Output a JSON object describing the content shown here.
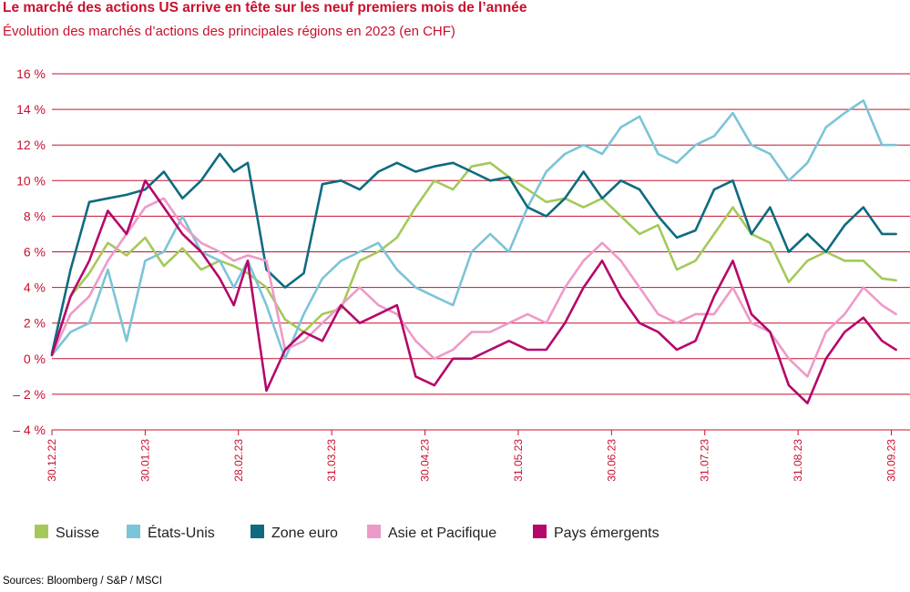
{
  "header": {
    "title": "Le marché des actions US arrive en tête sur les neuf premiers mois de l’année",
    "subtitle": "Évolution des marchés d’actions des principales régions en 2023 (en CHF)"
  },
  "footer": {
    "source": "Sources: Bloomberg / S&P / MSCI"
  },
  "chart_data": {
    "type": "line",
    "title": "Le marché des actions US arrive en tête sur les neuf premiers mois de l’année",
    "subtitle": "Évolution des marchés d’actions des principales régions en 2023 (en CHF)",
    "ylim": [
      -4,
      16
    ],
    "yticks": [
      -4,
      -2,
      0,
      2,
      4,
      6,
      8,
      10,
      12,
      14,
      16
    ],
    "ytick_labels": [
      "– 4 %",
      "– 2 %",
      "0 %",
      "2 %",
      "4 %",
      "6 %",
      "8 %",
      "10 %",
      "12 %",
      "14 %",
      "16 %"
    ],
    "xtick_labels": [
      "30.12.22",
      "30.01.23",
      "28.02.23",
      "31.03.23",
      "30.04.23",
      "31.05.23",
      "30.06.23",
      "31.07.23",
      "31.08.23",
      "30.09.23"
    ],
    "grid": "horizontal",
    "legend_position": "bottom",
    "colors": {
      "Suisse": "#a4c95a",
      "États-Unis": "#7cc4d8",
      "Zone euro": "#0f6b80",
      "Asie et Pacifique": "#ee9ac8",
      "Pays émergents": "#b5076b",
      "accent": "#c8102e",
      "gridline": "#c8102e"
    },
    "x_unit": "months since 30.12.22",
    "series": [
      {
        "name": "Suisse",
        "x": [
          0,
          0.2,
          0.4,
          0.6,
          0.8,
          1.0,
          1.2,
          1.4,
          1.6,
          1.8,
          1.95,
          2.1,
          2.3,
          2.5,
          2.7,
          2.9,
          3.1,
          3.3,
          3.5,
          3.7,
          3.9,
          4.1,
          4.3,
          4.5,
          4.7,
          4.9,
          5.1,
          5.3,
          5.5,
          5.7,
          5.9,
          6.1,
          6.3,
          6.5,
          6.7,
          6.9,
          7.1,
          7.3,
          7.5,
          7.7,
          7.9,
          8.1,
          8.3,
          8.5,
          8.7,
          8.9,
          9.05
        ],
        "y": [
          0.2,
          3.5,
          4.8,
          6.5,
          5.8,
          6.8,
          5.2,
          6.2,
          5.0,
          5.5,
          5.2,
          4.8,
          4.0,
          2.2,
          1.5,
          2.5,
          2.8,
          5.5,
          6.0,
          6.8,
          8.5,
          10.0,
          9.5,
          10.8,
          11.0,
          10.2,
          9.5,
          8.8,
          9.0,
          8.5,
          9.0,
          8.0,
          7.0,
          7.5,
          5.0,
          5.5,
          7.0,
          8.5,
          7.0,
          6.5,
          4.3,
          5.5,
          6.0,
          5.5,
          5.5,
          4.5,
          4.4
        ]
      },
      {
        "name": "États-Unis",
        "x": [
          0,
          0.2,
          0.4,
          0.6,
          0.8,
          1.0,
          1.2,
          1.4,
          1.6,
          1.8,
          1.95,
          2.1,
          2.3,
          2.5,
          2.7,
          2.9,
          3.1,
          3.3,
          3.5,
          3.7,
          3.9,
          4.1,
          4.3,
          4.5,
          4.7,
          4.9,
          5.1,
          5.3,
          5.5,
          5.7,
          5.9,
          6.1,
          6.3,
          6.5,
          6.7,
          6.9,
          7.1,
          7.3,
          7.5,
          7.7,
          7.9,
          8.1,
          8.3,
          8.5,
          8.7,
          8.9,
          9.05
        ],
        "y": [
          0.2,
          1.5,
          2.0,
          5.0,
          1.0,
          5.5,
          6.0,
          8.0,
          6.0,
          5.5,
          4.0,
          5.5,
          3.0,
          0.0,
          2.5,
          4.5,
          5.5,
          6.0,
          6.5,
          5.0,
          4.0,
          3.5,
          3.0,
          6.0,
          7.0,
          6.0,
          8.5,
          10.5,
          11.5,
          12.0,
          11.5,
          13.0,
          13.6,
          11.5,
          11.0,
          12.0,
          12.5,
          13.8,
          12.0,
          11.5,
          10.0,
          11.0,
          13.0,
          13.8,
          14.5,
          12.0,
          12.0
        ]
      },
      {
        "name": "Zone euro",
        "x": [
          0,
          0.2,
          0.4,
          0.6,
          0.8,
          1.0,
          1.2,
          1.4,
          1.6,
          1.8,
          1.95,
          2.1,
          2.3,
          2.5,
          2.7,
          2.9,
          3.1,
          3.3,
          3.5,
          3.7,
          3.9,
          4.1,
          4.3,
          4.5,
          4.7,
          4.9,
          5.1,
          5.3,
          5.5,
          5.7,
          5.9,
          6.1,
          6.3,
          6.5,
          6.7,
          6.9,
          7.1,
          7.3,
          7.5,
          7.7,
          7.9,
          8.1,
          8.3,
          8.5,
          8.7,
          8.9,
          9.05
        ],
        "y": [
          0.3,
          5.0,
          8.8,
          9.0,
          9.2,
          9.5,
          10.5,
          9.0,
          10.0,
          11.5,
          10.5,
          11.0,
          5.0,
          4.0,
          4.8,
          9.8,
          10.0,
          9.5,
          10.5,
          11.0,
          10.5,
          10.8,
          11.0,
          10.5,
          10.0,
          10.2,
          8.5,
          8.0,
          9.0,
          10.5,
          9.0,
          10.0,
          9.5,
          8.0,
          6.8,
          7.2,
          9.5,
          10.0,
          7.0,
          8.5,
          6.0,
          7.0,
          6.0,
          7.5,
          8.5,
          7.0,
          7.0
        ]
      },
      {
        "name": "Asie et Pacifique",
        "x": [
          0,
          0.2,
          0.4,
          0.6,
          0.8,
          1.0,
          1.2,
          1.4,
          1.6,
          1.8,
          1.95,
          2.1,
          2.3,
          2.5,
          2.7,
          2.9,
          3.1,
          3.3,
          3.5,
          3.7,
          3.9,
          4.1,
          4.3,
          4.5,
          4.7,
          4.9,
          5.1,
          5.3,
          5.5,
          5.7,
          5.9,
          6.1,
          6.3,
          6.5,
          6.7,
          6.9,
          7.1,
          7.3,
          7.5,
          7.7,
          7.9,
          8.1,
          8.3,
          8.5,
          8.7,
          8.9,
          9.05
        ],
        "y": [
          0.2,
          2.5,
          3.5,
          5.5,
          7.0,
          8.5,
          9.0,
          7.5,
          6.5,
          6.0,
          5.5,
          5.8,
          5.5,
          0.5,
          1.0,
          2.0,
          3.0,
          4.0,
          3.0,
          2.5,
          1.0,
          0.0,
          0.5,
          1.5,
          1.5,
          2.0,
          2.5,
          2.0,
          4.0,
          5.5,
          6.5,
          5.5,
          4.0,
          2.5,
          2.0,
          2.5,
          2.5,
          4.0,
          2.0,
          1.5,
          0.0,
          -1.0,
          1.5,
          2.5,
          4.0,
          3.0,
          2.5
        ]
      },
      {
        "name": "Pays émergents",
        "x": [
          0,
          0.2,
          0.4,
          0.6,
          0.8,
          1.0,
          1.2,
          1.4,
          1.6,
          1.8,
          1.95,
          2.1,
          2.3,
          2.5,
          2.7,
          2.9,
          3.1,
          3.3,
          3.5,
          3.7,
          3.9,
          4.1,
          4.3,
          4.5,
          4.7,
          4.9,
          5.1,
          5.3,
          5.5,
          5.7,
          5.9,
          6.1,
          6.3,
          6.5,
          6.7,
          6.9,
          7.1,
          7.3,
          7.5,
          7.7,
          7.9,
          8.1,
          8.3,
          8.5,
          8.7,
          8.9,
          9.05
        ],
        "y": [
          0.2,
          3.5,
          5.5,
          8.3,
          7.0,
          10.0,
          8.5,
          7.0,
          6.0,
          4.5,
          3.0,
          5.5,
          -1.8,
          0.5,
          1.5,
          1.0,
          3.0,
          2.0,
          2.5,
          3.0,
          -1.0,
          -1.5,
          0.0,
          0.0,
          0.5,
          1.0,
          0.5,
          0.5,
          2.0,
          4.0,
          5.5,
          3.5,
          2.0,
          1.5,
          0.5,
          1.0,
          3.5,
          5.5,
          2.5,
          1.5,
          -1.5,
          -2.5,
          0.0,
          1.5,
          2.3,
          1.0,
          0.5
        ]
      }
    ]
  }
}
